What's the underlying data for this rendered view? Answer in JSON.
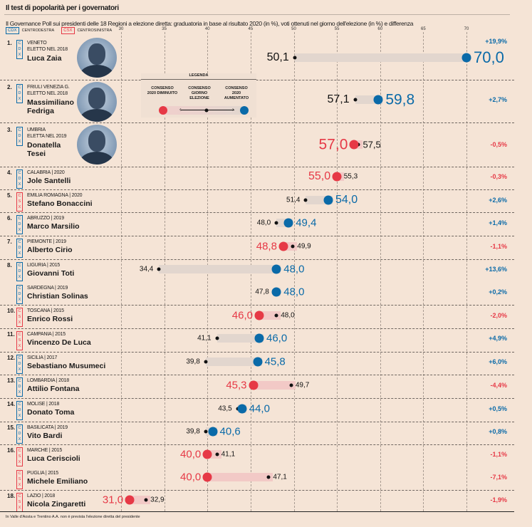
{
  "title": "Il test di popolarità per i governatori",
  "subtitle": "Il Governance Poll sui presidenti delle 18 Regioni a elezione diretta: graduatoria in base al risultato 2020 (in %), voti ottenuti nel giorno dell'elezione (in %) e differenza",
  "key": {
    "cdx_badge": "CDX",
    "cdx_label": "CENTRODESTRA",
    "csx_badge": "CSX",
    "csx_label": "CENTROSINISTRA"
  },
  "legend": {
    "title": "LEGENDA",
    "decreased": "CONSENSO 2020 DIMINUITO",
    "election": "CONSENSO GIORNO ELEZIONE",
    "increased": "CONSENSO 2020 AUMENTATO"
  },
  "colors": {
    "background": "#f5e4d6",
    "cdx": "#0a6aa8",
    "csx": "#e63946",
    "increase": "#0a6aa8",
    "decrease": "#e63946",
    "bar_increase": "#e2d6ce",
    "bar_decrease": "#f2c9c6"
  },
  "footnote": "In Valle d'Aosta e Trentino A.A. non è prevista l'elezione diretta del presidente",
  "chart_data": {
    "type": "dumbbell",
    "xlim": [
      30,
      70
    ],
    "ticks": [
      "30",
      "35",
      "40",
      "45",
      "50",
      "55",
      "60",
      "65",
      "70"
    ],
    "grid": true,
    "rows": [
      {
        "rank": "1.",
        "coalition": "CDX",
        "region": "VENETO",
        "year": "ELETTO NEL 2018",
        "name": "Luca Zaia",
        "election": "50,1",
        "y2020": "70,0",
        "e": 50.1,
        "v": 70.0,
        "diff": "+19,9%",
        "photo": true
      },
      {
        "rank": "2.",
        "coalition": "CDX",
        "region": "FRIULI VENEZIA G.",
        "year": "ELETTO NEL 2018",
        "name": "Massimiliano Fedriga",
        "election": "57,1",
        "y2020": "59,8",
        "e": 57.1,
        "v": 59.8,
        "diff": "+2,7%",
        "photo": true
      },
      {
        "rank": "3.",
        "coalition": "CDX",
        "region": "UMBRIA",
        "year": "ELETTA NEL 2019",
        "name": "Donatella Tesei",
        "election": "57,5",
        "y2020": "57,0",
        "e": 57.5,
        "v": 57.0,
        "diff": "-0,5%",
        "photo": true
      },
      {
        "rank": "4.",
        "coalition": "CDX",
        "region": "CALABRIA | 2020",
        "year": "",
        "name": "Jole Santelli",
        "election": "55,3",
        "y2020": "55,0",
        "e": 55.3,
        "v": 55.0,
        "diff": "-0,3%"
      },
      {
        "rank": "5.",
        "coalition": "CSX",
        "region": "EMILIA ROMAGNA | 2020",
        "year": "",
        "name": "Stefano Bonaccini",
        "election": "51,4",
        "y2020": "54,0",
        "e": 51.4,
        "v": 54.0,
        "diff": "+2,6%"
      },
      {
        "rank": "6.",
        "coalition": "CDX",
        "region": "ABRUZZO | 2019",
        "year": "",
        "name": "Marco Marsilio",
        "election": "48,0",
        "y2020": "49,4",
        "e": 48.0,
        "v": 49.4,
        "diff": "+1,4%"
      },
      {
        "rank": "7.",
        "coalition": "CDX",
        "region": "PIEMONTE | 2019",
        "year": "",
        "name": "Alberto Cirio",
        "election": "49,9",
        "y2020": "48,8",
        "e": 49.9,
        "v": 48.8,
        "diff": "-1,1%"
      },
      {
        "rank": "8.",
        "coalition": "CDX",
        "region": "LIGURIA | 2015",
        "year": "",
        "name": "Giovanni Toti",
        "election": "34,4",
        "y2020": "48,0",
        "e": 34.4,
        "v": 48.0,
        "diff": "+13,6%"
      },
      {
        "rank": "",
        "coalition": "CDX",
        "region": "SARDEGNA | 2019",
        "year": "",
        "name": "Christian Solinas",
        "election": "47,8",
        "y2020": "48,0",
        "e": 47.8,
        "v": 48.0,
        "diff": "+0,2%"
      },
      {
        "rank": "10.",
        "coalition": "CSX",
        "region": "TOSCANA | 2015",
        "year": "",
        "name": "Enrico Rossi",
        "election": "48,0",
        "y2020": "46,0",
        "e": 48.0,
        "v": 46.0,
        "diff": "-2,0%"
      },
      {
        "rank": "11.",
        "coalition": "CSX",
        "region": "CAMPANIA | 2015",
        "year": "",
        "name": "Vincenzo De Luca",
        "election": "41,1",
        "y2020": "46,0",
        "e": 41.1,
        "v": 46.0,
        "diff": "+4,9%"
      },
      {
        "rank": "12.",
        "coalition": "CDX",
        "region": "SICILIA | 2017",
        "year": "",
        "name": "Sebastiano Musumeci",
        "election": "39,8",
        "y2020": "45,8",
        "e": 39.8,
        "v": 45.8,
        "diff": "+6,0%"
      },
      {
        "rank": "13.",
        "coalition": "CDX",
        "region": "LOMBARDIA | 2018",
        "year": "",
        "name": "Attilio Fontana",
        "election": "49,7",
        "y2020": "45,3",
        "e": 49.7,
        "v": 45.3,
        "diff": "-4,4%"
      },
      {
        "rank": "14.",
        "coalition": "CDX",
        "region": "MOLISE | 2018",
        "year": "",
        "name": "Donato Toma",
        "election": "43,5",
        "y2020": "44,0",
        "e": 43.5,
        "v": 44.0,
        "diff": "+0,5%"
      },
      {
        "rank": "15.",
        "coalition": "CDX",
        "region": "BASILICATA | 2019",
        "year": "",
        "name": "Vito Bardi",
        "election": "39,8",
        "y2020": "40,6",
        "e": 39.8,
        "v": 40.6,
        "diff": "+0,8%"
      },
      {
        "rank": "16.",
        "coalition": "CSX",
        "region": "MARCHE | 2015",
        "year": "",
        "name": "Luca Ceriscioli",
        "election": "41,1",
        "y2020": "40,0",
        "e": 41.1,
        "v": 40.0,
        "diff": "-1,1%"
      },
      {
        "rank": "",
        "coalition": "CSX",
        "region": "PUGLIA | 2015",
        "year": "",
        "name": "Michele Emiliano",
        "election": "47,1",
        "y2020": "40,0",
        "e": 47.1,
        "v": 40.0,
        "diff": "-7,1%"
      },
      {
        "rank": "18.",
        "coalition": "CSX",
        "region": "LAZIO | 2018",
        "year": "",
        "name": "Nicola Zingaretti",
        "election": "32,9",
        "y2020": "31,0",
        "e": 32.9,
        "v": 31.0,
        "diff": "-1,9%"
      }
    ]
  }
}
